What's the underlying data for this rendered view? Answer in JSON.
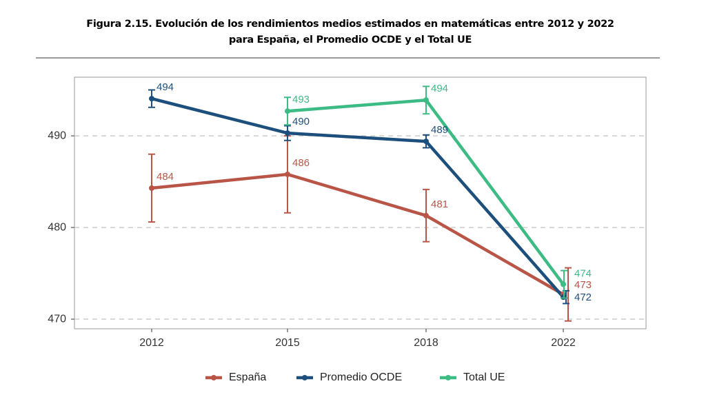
{
  "chart_data": {
    "type": "line",
    "title": [
      "Figura 2.15. Evolución de los rendimientos medios estimados en matemáticas entre 2012 y 2022",
      "para España, el Promedio OCDE y el Total UE"
    ],
    "categories": [
      "2012",
      "2015",
      "2018",
      "2022"
    ],
    "ylim": [
      468.95,
      496.4
    ],
    "yticks": [
      470,
      480,
      490
    ],
    "grid": true,
    "legend": "bottom",
    "series": [
      {
        "name": "España",
        "color": "#b95547",
        "values": [
          484.3,
          485.8,
          481.3,
          472.7
        ],
        "errors": [
          3.7,
          4.2,
          2.85,
          2.9
        ],
        "value_labels": [
          "484",
          "486",
          "481",
          "473"
        ]
      },
      {
        "name": "Promedio OCDE",
        "color": "#1d4f7c",
        "values": [
          494.06,
          490.3,
          489.4,
          472.4
        ],
        "errors": [
          0.95,
          0.8,
          0.7,
          0.7
        ],
        "value_labels": [
          "494",
          "490",
          "489",
          "472"
        ]
      },
      {
        "name": "Total UE",
        "color": "#3dbb85",
        "values": [
          null,
          492.7,
          493.9,
          473.8
        ],
        "errors": [
          null,
          1.5,
          1.5,
          1.5
        ],
        "value_labels": [
          null,
          "493",
          "494",
          "474"
        ]
      }
    ]
  }
}
